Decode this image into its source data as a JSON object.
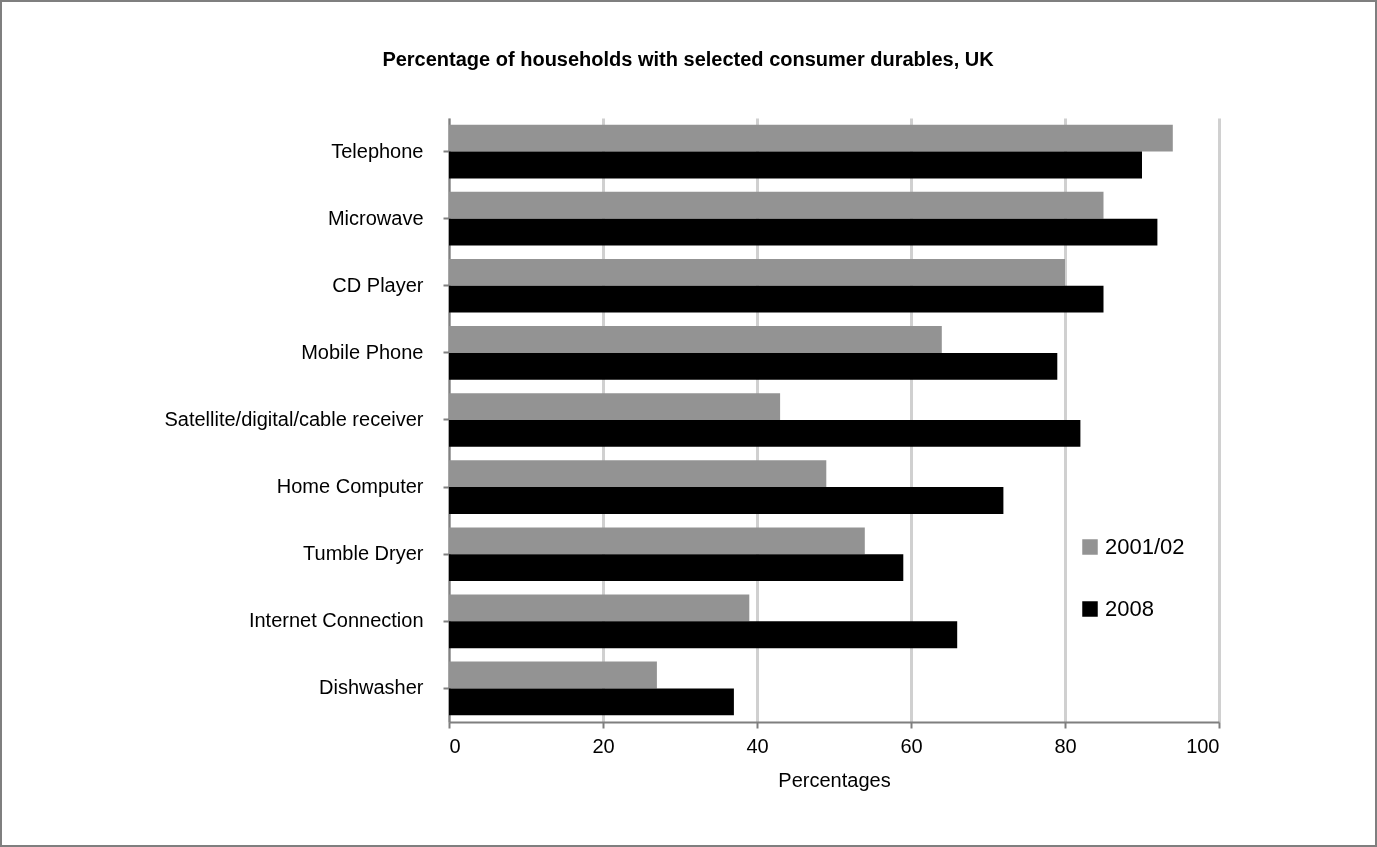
{
  "chart_data": {
    "type": "bar",
    "orientation": "horizontal",
    "title": "Percentage of households with selected consumer durables, UK",
    "xlabel": "Percentages",
    "categories": [
      "Telephone",
      "Microwave",
      "CD Player",
      "Mobile Phone",
      "Satellite/digital/cable receiver",
      "Home Computer",
      "Tumble Dryer",
      "Internet Connection",
      "Dishwasher"
    ],
    "series": [
      {
        "name": "2001/02",
        "color": "#939393",
        "values": [
          94,
          85,
          80,
          64,
          43,
          49,
          54,
          39,
          27
        ]
      },
      {
        "name": "2008",
        "color": "#000000",
        "values": [
          90,
          92,
          85,
          79,
          82,
          72,
          59,
          66,
          37
        ]
      }
    ],
    "xlim": [
      0,
      100
    ],
    "xticks": [
      0,
      20,
      40,
      60,
      80,
      100
    ],
    "grid": "x",
    "legend": "right"
  }
}
